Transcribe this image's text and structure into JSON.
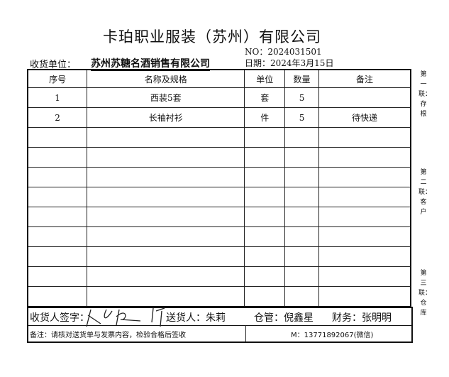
{
  "title": "卡珀职业服装（苏州）有限公司",
  "no": "NO：2024031501",
  "receiver_label": "收货单位：",
  "receiver_value": "苏州苏糖名酒销售有限公司",
  "date": "日期：2024年3月15日",
  "table": {
    "headers": [
      "序号",
      "名称及规格",
      "单位",
      "数量",
      "备注"
    ],
    "rows": [
      [
        "1",
        "西装5套",
        "套",
        "5",
        ""
      ],
      [
        "2",
        "长袖衬衫",
        "件",
        "5",
        "待快递"
      ],
      [
        "",
        "",
        "",
        "",
        ""
      ],
      [
        "",
        "",
        "",
        "",
        ""
      ],
      [
        "",
        "",
        "",
        "",
        ""
      ],
      [
        "",
        "",
        "",
        "",
        ""
      ],
      [
        "",
        "",
        "",
        "",
        ""
      ],
      [
        "",
        "",
        "",
        "",
        ""
      ],
      [
        "",
        "",
        "",
        "",
        ""
      ],
      [
        "",
        "",
        "",
        "",
        ""
      ],
      [
        "",
        "",
        "",
        "",
        ""
      ]
    ]
  },
  "footer": {
    "receiver_sign": "收货人签字：",
    "deliverer": "送货人：朱莉",
    "warehouse": "仓管：倪鑫星",
    "finance": "财务：张明明",
    "note": "备注：请核对送货单与发票内容，检验合格后签收",
    "contact": "M：13771892067(微信)"
  },
  "side": [
    "第一联：存根",
    "第二联：客户",
    "第三联：仓库"
  ]
}
